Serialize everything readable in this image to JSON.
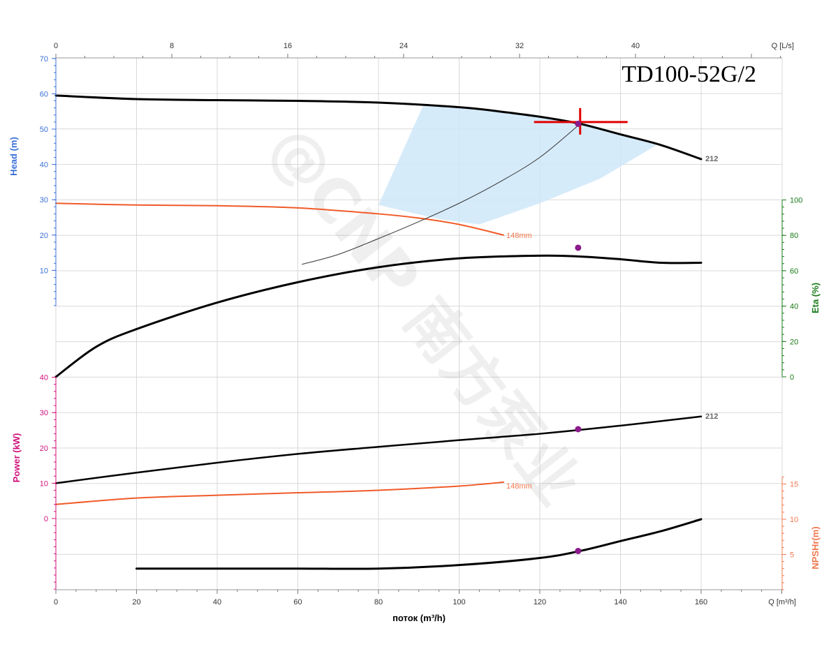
{
  "chart_data": {
    "type": "line",
    "title": "TD100-52G/2",
    "watermark": "@CNP 南方泵业",
    "colors": {
      "head_axis": "#3a6fd8",
      "eta_axis": "#1a7a1a",
      "power_axis": "#d0107a",
      "npsh_axis": "#f07850",
      "curve": "#000000",
      "curve_alt": "#f05a28",
      "duty_marker": "#e00000",
      "point_marker": "#8b1a8b",
      "operating_region": "#cfe7f9",
      "grid": "#d8d8d8"
    },
    "x_axis": {
      "label": "поток (m³/h)",
      "unit_label": "Q [m³/h]",
      "range": [
        0,
        180
      ],
      "ticks": [
        0,
        20,
        40,
        60,
        80,
        100,
        120,
        140,
        160
      ]
    },
    "top_axis": {
      "unit_label": "Q [L/s]",
      "range": [
        0,
        50
      ],
      "ticks": [
        0,
        8,
        16,
        24,
        32,
        40
      ]
    },
    "head_panel": {
      "axis_label": "Head (m)",
      "range": [
        0,
        70
      ],
      "ticks": [
        10,
        20,
        30,
        40,
        50,
        60,
        70
      ],
      "series": [
        {
          "name": "212",
          "color": "curve",
          "x": [
            0,
            20,
            40,
            60,
            80,
            100,
            110,
            120,
            130,
            140,
            150,
            160
          ],
          "y": [
            59.5,
            58.5,
            58.2,
            58.0,
            57.5,
            56.2,
            55.0,
            53.5,
            51.5,
            48.5,
            45.5,
            41.5
          ]
        },
        {
          "name": "148mm",
          "color": "curve_alt",
          "x": [
            0,
            20,
            40,
            60,
            80,
            90,
            100,
            111
          ],
          "y": [
            29.0,
            28.5,
            28.3,
            27.7,
            26.0,
            24.8,
            23.0,
            20.0
          ]
        }
      ],
      "system_curve": {
        "x": [
          61,
          70,
          80,
          90,
          100,
          110,
          120,
          130
        ],
        "y": [
          11.7,
          14.5,
          19.0,
          23.8,
          29.0,
          35.0,
          42.0,
          51.5
        ]
      },
      "operating_region": {
        "upper_x": [
          91,
          100,
          110,
          120,
          130,
          140,
          149
        ],
        "upper_y": [
          56.5,
          56.2,
          55.0,
          53.5,
          51.5,
          48.5,
          45.5
        ],
        "lower_x": [
          149,
          135,
          120,
          105,
          95,
          80
        ],
        "lower_y": [
          45.5,
          36.0,
          29.0,
          23.0,
          24.5,
          28.5
        ]
      },
      "duty_point": {
        "x": 130,
        "y": 52
      },
      "operating_point": {
        "x": 129.5,
        "y": 51.5
      }
    },
    "eta_panel": {
      "axis_label": "Eta (%)",
      "range": [
        0,
        100
      ],
      "ticks": [
        0,
        20,
        40,
        60,
        80,
        100
      ],
      "series": [
        {
          "name": "212",
          "color": "curve",
          "x": [
            0,
            10,
            20,
            40,
            60,
            80,
            100,
            120,
            130,
            140,
            150,
            160
          ],
          "y": [
            0,
            17,
            27,
            42,
            53.5,
            62,
            67,
            68.5,
            68,
            66.5,
            64.5,
            64.5
          ]
        }
      ],
      "operating_point": {
        "x": 129.5,
        "y": 73
      }
    },
    "power_panel": {
      "axis_label": "Power (kW)",
      "range": [
        0,
        40
      ],
      "ticks": [
        0,
        10,
        20,
        30,
        40
      ],
      "series": [
        {
          "name": "212",
          "color": "curve",
          "x": [
            0,
            20,
            40,
            60,
            80,
            100,
            120,
            140,
            160
          ],
          "y": [
            10.0,
            13.0,
            15.8,
            18.3,
            20.3,
            22.2,
            24.0,
            26.3,
            28.9
          ]
        },
        {
          "name": "148mm",
          "color": "curve_alt",
          "x": [
            0,
            20,
            40,
            60,
            80,
            100,
            111
          ],
          "y": [
            4.0,
            5.8,
            6.6,
            7.3,
            8.0,
            9.2,
            10.3
          ]
        }
      ],
      "operating_point": {
        "x": 129.5,
        "y": 25.3
      }
    },
    "npsh_panel": {
      "axis_label": "NPSHr(m)",
      "range": [
        0,
        15
      ],
      "ticks": [
        5,
        10,
        15
      ],
      "series": [
        {
          "name": "212",
          "color": "curve",
          "x": [
            20,
            40,
            60,
            80,
            100,
            120,
            130,
            140,
            150,
            160
          ],
          "y": [
            3.0,
            3.0,
            3.0,
            3.0,
            3.5,
            4.5,
            5.5,
            6.9,
            8.3,
            10.0
          ]
        }
      ],
      "operating_point": {
        "x": 129.5,
        "y": 5.5
      }
    },
    "annotations": [
      {
        "text": "212",
        "curve": "head"
      },
      {
        "text": "148mm",
        "curve": "head_alt"
      },
      {
        "text": "212",
        "curve": "power"
      },
      {
        "text": "148mm",
        "curve": "power_alt"
      }
    ]
  }
}
